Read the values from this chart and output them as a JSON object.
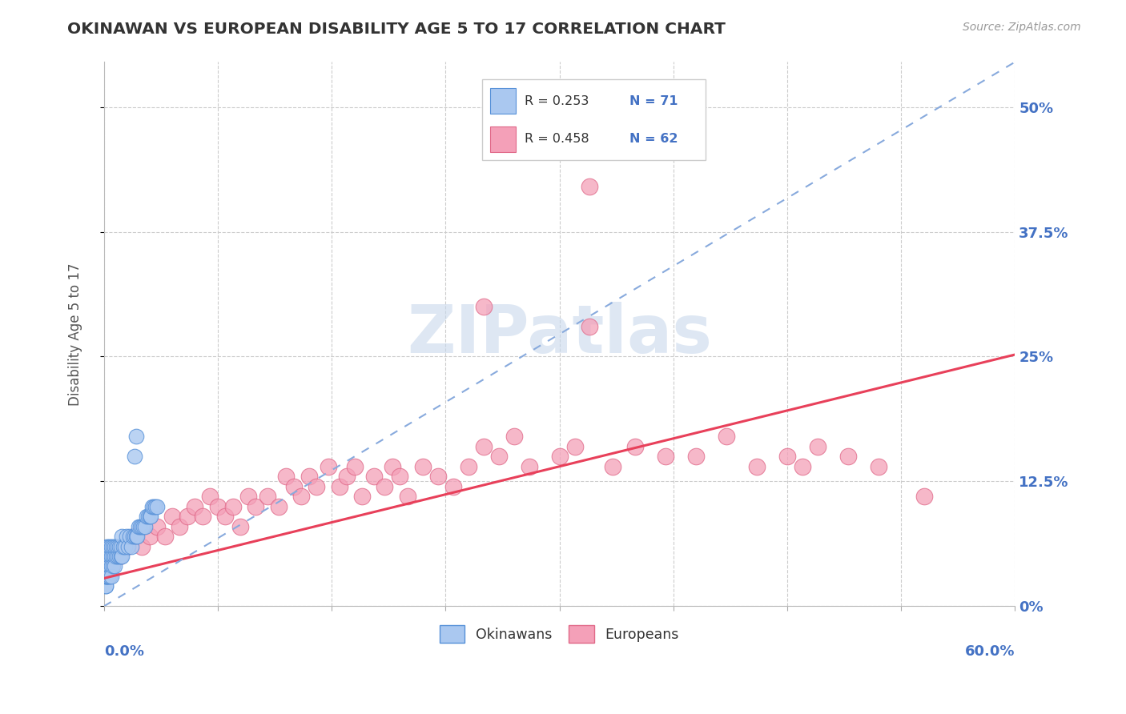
{
  "title": "OKINAWAN VS EUROPEAN DISABILITY AGE 5 TO 17 CORRELATION CHART",
  "source": "Source: ZipAtlas.com",
  "ylabel": "Disability Age 5 to 17",
  "ytick_labels": [
    "0%",
    "12.5%",
    "25%",
    "37.5%",
    "50%"
  ],
  "ytick_values": [
    0.0,
    0.125,
    0.25,
    0.375,
    0.5
  ],
  "xmin": 0.0,
  "xmax": 0.6,
  "ymin": 0.0,
  "ymax": 0.545,
  "legend_r1": "R = 0.253",
  "legend_n1": "N = 71",
  "legend_r2": "R = 0.458",
  "legend_n2": "N = 62",
  "okinawan_color": "#aac8f0",
  "okinawan_edge": "#5590d8",
  "european_color": "#f4a0b8",
  "european_edge": "#e06888",
  "trendline_okinawan_color": "#88aadd",
  "trendline_european_color": "#e8405a",
  "watermark": "ZIPatlas",
  "watermark_color": "#c8d8ec",
  "background": "#ffffff",
  "grid_color": "#cccccc",
  "title_color": "#333333",
  "axis_label_color": "#4472c4",
  "ylabel_color": "#555555",
  "source_color": "#999999",
  "ok_x": [
    0.001,
    0.001,
    0.001,
    0.001,
    0.001,
    0.001,
    0.001,
    0.001,
    0.001,
    0.001,
    0.002,
    0.002,
    0.002,
    0.002,
    0.002,
    0.002,
    0.002,
    0.003,
    0.003,
    0.003,
    0.003,
    0.003,
    0.004,
    0.004,
    0.004,
    0.004,
    0.005,
    0.005,
    0.005,
    0.005,
    0.006,
    0.006,
    0.006,
    0.007,
    0.007,
    0.007,
    0.008,
    0.008,
    0.009,
    0.009,
    0.01,
    0.01,
    0.011,
    0.011,
    0.012,
    0.012,
    0.013,
    0.014,
    0.015,
    0.016,
    0.017,
    0.018,
    0.019,
    0.02,
    0.021,
    0.022,
    0.023,
    0.024,
    0.025,
    0.026,
    0.027,
    0.028,
    0.029,
    0.03,
    0.031,
    0.032,
    0.033,
    0.034,
    0.035,
    0.02,
    0.021
  ],
  "ok_y": [
    0.02,
    0.03,
    0.04,
    0.05,
    0.03,
    0.02,
    0.04,
    0.03,
    0.05,
    0.04,
    0.03,
    0.04,
    0.05,
    0.03,
    0.06,
    0.04,
    0.05,
    0.03,
    0.05,
    0.04,
    0.06,
    0.03,
    0.05,
    0.04,
    0.06,
    0.03,
    0.05,
    0.04,
    0.06,
    0.03,
    0.05,
    0.04,
    0.06,
    0.05,
    0.04,
    0.06,
    0.05,
    0.06,
    0.05,
    0.06,
    0.05,
    0.06,
    0.05,
    0.06,
    0.05,
    0.07,
    0.06,
    0.06,
    0.07,
    0.06,
    0.07,
    0.06,
    0.07,
    0.07,
    0.07,
    0.07,
    0.08,
    0.08,
    0.08,
    0.08,
    0.08,
    0.09,
    0.09,
    0.09,
    0.09,
    0.1,
    0.1,
    0.1,
    0.1,
    0.15,
    0.17
  ],
  "eu_x": [
    0.005,
    0.01,
    0.015,
    0.02,
    0.025,
    0.03,
    0.035,
    0.04,
    0.045,
    0.05,
    0.055,
    0.06,
    0.065,
    0.07,
    0.075,
    0.08,
    0.085,
    0.09,
    0.095,
    0.1,
    0.108,
    0.115,
    0.12,
    0.125,
    0.13,
    0.135,
    0.14,
    0.148,
    0.155,
    0.16,
    0.165,
    0.17,
    0.178,
    0.185,
    0.19,
    0.195,
    0.2,
    0.21,
    0.22,
    0.23,
    0.24,
    0.25,
    0.26,
    0.27,
    0.28,
    0.3,
    0.31,
    0.32,
    0.335,
    0.35,
    0.37,
    0.39,
    0.41,
    0.43,
    0.45,
    0.46,
    0.47,
    0.49,
    0.51,
    0.54,
    0.32,
    0.25
  ],
  "eu_y": [
    0.04,
    0.05,
    0.06,
    0.07,
    0.06,
    0.07,
    0.08,
    0.07,
    0.09,
    0.08,
    0.09,
    0.1,
    0.09,
    0.11,
    0.1,
    0.09,
    0.1,
    0.08,
    0.11,
    0.1,
    0.11,
    0.1,
    0.13,
    0.12,
    0.11,
    0.13,
    0.12,
    0.14,
    0.12,
    0.13,
    0.14,
    0.11,
    0.13,
    0.12,
    0.14,
    0.13,
    0.11,
    0.14,
    0.13,
    0.12,
    0.14,
    0.16,
    0.15,
    0.17,
    0.14,
    0.15,
    0.16,
    0.42,
    0.14,
    0.16,
    0.15,
    0.15,
    0.17,
    0.14,
    0.15,
    0.14,
    0.16,
    0.15,
    0.14,
    0.11,
    0.28,
    0.3
  ],
  "ok_trend_x0": 0.0,
  "ok_trend_x1": 0.6,
  "ok_trend_y0": 0.0,
  "ok_trend_y1": 0.545,
  "eu_trend_x0": 0.0,
  "eu_trend_x1": 0.6,
  "eu_trend_y0": 0.028,
  "eu_trend_y1": 0.252
}
